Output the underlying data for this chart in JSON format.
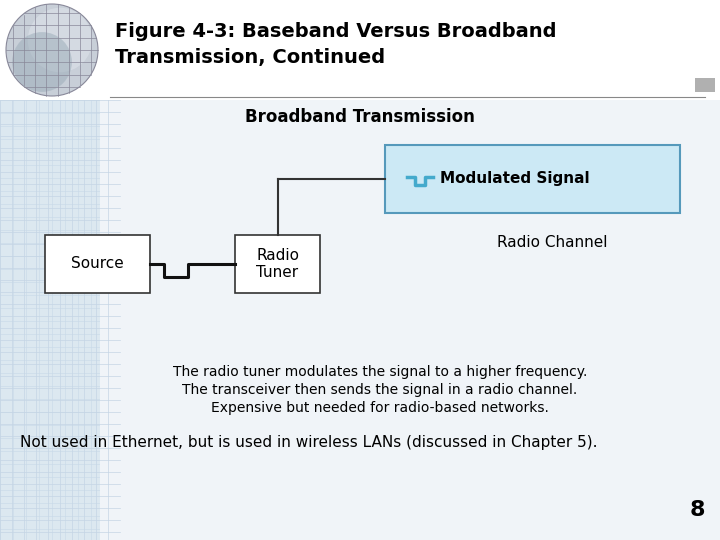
{
  "title_line1": "Figure 4-3: Baseband Versus Broadband",
  "title_line2": "Transmission, Continued",
  "section_title": "Broadband Transmission",
  "source_label": "Source",
  "tuner_label": "Radio\nTuner",
  "modulated_label": "Modulated Signal",
  "radio_channel_label": "Radio Channel",
  "text1": "The radio tuner modulates the signal to a higher frequency.",
  "text2": "The transceiver then sends the signal in a radio channel.",
  "text3": "Expensive but needed for radio-based networks.",
  "text4": "Not used in Ethernet, but is used in wireless LANs (discussed in Chapter 5).",
  "page_num": "8",
  "bg_top": "#ffffff",
  "bg_bottom": "#dce6f0",
  "box_fill": "#ffffff",
  "modulated_box_fill": "#cce9f5",
  "modulated_box_edge": "#5599bb",
  "signal_color": "#44aacc",
  "line_color": "#111111",
  "title_color": "#000000",
  "title_fontsize": 14,
  "section_fontsize": 12,
  "label_fontsize": 11,
  "body_fontsize": 10,
  "note_fontsize": 11
}
